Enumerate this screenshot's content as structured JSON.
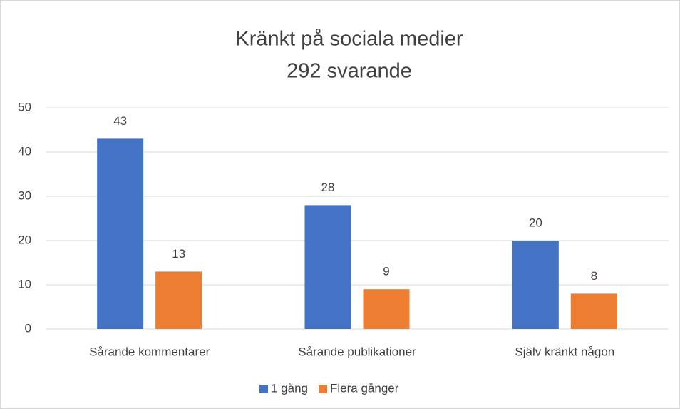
{
  "chart_data": {
    "type": "bar",
    "title": "Kränkt på sociala medier",
    "subtitle": "292 svarande",
    "categories": [
      "Sårande kommentarer",
      "Sårande publikationer",
      "Själv kränkt någon"
    ],
    "series": [
      {
        "name": "1 gång",
        "color": "#4472c4",
        "values": [
          43,
          28,
          20
        ]
      },
      {
        "name": "Flera gånger",
        "color": "#ed7d31",
        "values": [
          13,
          9,
          8
        ]
      }
    ],
    "ylim": [
      0,
      50
    ],
    "yticks": [
      0,
      10,
      20,
      30,
      40,
      50
    ],
    "grid": true,
    "legend": "bottom"
  }
}
